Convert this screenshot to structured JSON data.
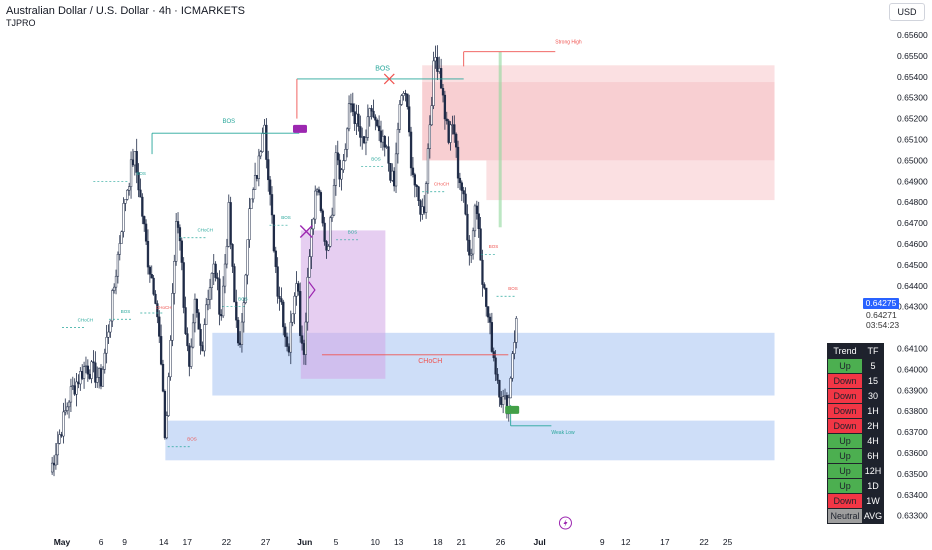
{
  "header": {
    "title": "Australian Dollar / U.S. Dollar · 4h · ICMARKETS",
    "indicator": "TJPRO",
    "currency_button": "USD"
  },
  "price_scale": {
    "current_price": "0.64275",
    "last_value": "0.64271",
    "countdown": "03:54:23"
  },
  "colors": {
    "up_candle": "#ffffff",
    "down_candle": "#1e2a46",
    "bos": "#26a69a",
    "choch": "#ef5350",
    "supply_zone": "#f7c7ca",
    "demand_zone": "#c5d8f7",
    "purple_zone": "#d1a6e6",
    "accent": "#2962ff"
  },
  "chart_data": {
    "type": "candlestick",
    "symbol": "AUDUSD",
    "timeframe": "4h",
    "ylim": [
      0.633,
      0.6565
    ],
    "yticks": [
      "0.65600",
      "0.65500",
      "0.65400",
      "0.65300",
      "0.65200",
      "0.65100",
      "0.65000",
      "0.64900",
      "0.64800",
      "0.64700",
      "0.64600",
      "0.64500",
      "0.64400",
      "0.64300",
      "0.64100",
      "0.64000",
      "0.63900",
      "0.63800",
      "0.63700",
      "0.63600",
      "0.63500",
      "0.63400",
      "0.63300"
    ],
    "xticks": [
      {
        "label": "May",
        "day": 0,
        "bold": true
      },
      {
        "label": "6",
        "day": 5
      },
      {
        "label": "9",
        "day": 8
      },
      {
        "label": "14",
        "day": 13
      },
      {
        "label": "17",
        "day": 16
      },
      {
        "label": "22",
        "day": 21
      },
      {
        "label": "27",
        "day": 26
      },
      {
        "label": "Jun",
        "day": 31,
        "bold": true
      },
      {
        "label": "5",
        "day": 35
      },
      {
        "label": "10",
        "day": 40
      },
      {
        "label": "13",
        "day": 43
      },
      {
        "label": "18",
        "day": 48
      },
      {
        "label": "21",
        "day": 51
      },
      {
        "label": "26",
        "day": 56
      },
      {
        "label": "Jul",
        "day": 61,
        "bold": true
      },
      {
        "label": "9",
        "day": 69
      },
      {
        "label": "12",
        "day": 72
      },
      {
        "label": "17",
        "day": 77
      },
      {
        "label": "22",
        "day": 82
      },
      {
        "label": "25",
        "day": 85
      }
    ],
    "swings": [
      {
        "day": -1.5,
        "price": 0.6351
      },
      {
        "day": 1,
        "price": 0.6388
      },
      {
        "day": 3,
        "price": 0.6402
      },
      {
        "day": 5,
        "price": 0.6395
      },
      {
        "day": 6.5,
        "price": 0.6435
      },
      {
        "day": 8,
        "price": 0.6481
      },
      {
        "day": 9.2,
        "price": 0.6503
      },
      {
        "day": 9.8,
        "price": 0.6488
      },
      {
        "day": 11,
        "price": 0.6452
      },
      {
        "day": 12,
        "price": 0.6435
      },
      {
        "day": 12.6,
        "price": 0.6405
      },
      {
        "day": 13.2,
        "price": 0.6365
      },
      {
        "day": 14,
        "price": 0.6425
      },
      {
        "day": 14.6,
        "price": 0.6473
      },
      {
        "day": 15,
        "price": 0.6468
      },
      {
        "day": 15.7,
        "price": 0.6423
      },
      {
        "day": 16.3,
        "price": 0.6396
      },
      {
        "day": 17,
        "price": 0.6431
      },
      {
        "day": 17.8,
        "price": 0.6408
      },
      {
        "day": 18.4,
        "price": 0.6432
      },
      {
        "day": 19.5,
        "price": 0.645
      },
      {
        "day": 20.3,
        "price": 0.6425
      },
      {
        "day": 21.3,
        "price": 0.6475
      },
      {
        "day": 22,
        "price": 0.6432
      },
      {
        "day": 22.8,
        "price": 0.6407
      },
      {
        "day": 23.8,
        "price": 0.6472
      },
      {
        "day": 25.2,
        "price": 0.65
      },
      {
        "day": 25.8,
        "price": 0.6525
      },
      {
        "day": 26.3,
        "price": 0.6492
      },
      {
        "day": 27,
        "price": 0.6463
      },
      {
        "day": 27.5,
        "price": 0.644
      },
      {
        "day": 28,
        "price": 0.6433
      },
      {
        "day": 28.5,
        "price": 0.6417
      },
      {
        "day": 29,
        "price": 0.641
      },
      {
        "day": 29.5,
        "price": 0.6432
      },
      {
        "day": 30,
        "price": 0.6448
      },
      {
        "day": 30.5,
        "price": 0.6415
      },
      {
        "day": 31,
        "price": 0.641
      },
      {
        "day": 31.5,
        "price": 0.6456
      },
      {
        "day": 32,
        "price": 0.6468
      },
      {
        "day": 32.5,
        "price": 0.649
      },
      {
        "day": 33,
        "price": 0.6475
      },
      {
        "day": 33.8,
        "price": 0.6458
      },
      {
        "day": 34.4,
        "price": 0.6472
      },
      {
        "day": 35,
        "price": 0.6508
      },
      {
        "day": 35.6,
        "price": 0.6492
      },
      {
        "day": 36.2,
        "price": 0.6507
      },
      {
        "day": 36.8,
        "price": 0.6528
      },
      {
        "day": 37.5,
        "price": 0.652
      },
      {
        "day": 38.5,
        "price": 0.6505
      },
      {
        "day": 39.5,
        "price": 0.6525
      },
      {
        "day": 40.5,
        "price": 0.651
      },
      {
        "day": 41.5,
        "price": 0.6503
      },
      {
        "day": 42.4,
        "price": 0.6486
      },
      {
        "day": 43,
        "price": 0.6522
      },
      {
        "day": 43.8,
        "price": 0.6535
      },
      {
        "day": 44.6,
        "price": 0.65
      },
      {
        "day": 45.4,
        "price": 0.648
      },
      {
        "day": 46.2,
        "price": 0.6475
      },
      {
        "day": 47,
        "price": 0.652
      },
      {
        "day": 47.6,
        "price": 0.655
      },
      {
        "day": 48.2,
        "price": 0.6545
      },
      {
        "day": 48.8,
        "price": 0.6525
      },
      {
        "day": 49.4,
        "price": 0.651
      },
      {
        "day": 50,
        "price": 0.6518
      },
      {
        "day": 50.5,
        "price": 0.6496
      },
      {
        "day": 51,
        "price": 0.6488
      },
      {
        "day": 51.6,
        "price": 0.6472
      },
      {
        "day": 52.2,
        "price": 0.6452
      },
      {
        "day": 52.7,
        "price": 0.648
      },
      {
        "day": 53.2,
        "price": 0.647
      },
      {
        "day": 53.8,
        "price": 0.644
      },
      {
        "day": 54.6,
        "price": 0.642
      },
      {
        "day": 55.4,
        "price": 0.64
      },
      {
        "day": 56.2,
        "price": 0.6385
      },
      {
        "day": 57,
        "price": 0.6383
      },
      {
        "day": 57.5,
        "price": 0.6408
      },
      {
        "day": 58.2,
        "price": 0.6427
      }
    ],
    "zones": [
      {
        "kind": "supply",
        "d1": 46.0,
        "d2": 91,
        "top": 0.65455,
        "bottom": 0.65375,
        "color": "#f7c7ca",
        "opacity": 0.55
      },
      {
        "kind": "supply",
        "d1": 46.0,
        "d2": 91,
        "top": 0.65375,
        "bottom": 0.65,
        "color": "#f7c7ca",
        "opacity": 0.85
      },
      {
        "kind": "supply",
        "d1": 54.2,
        "d2": 91,
        "top": 0.65,
        "bottom": 0.6481,
        "color": "#f7c7ca",
        "opacity": 0.55
      },
      {
        "kind": "demand",
        "d1": 19.2,
        "d2": 91,
        "top": 0.64175,
        "bottom": 0.63875,
        "color": "#c5d8f7",
        "opacity": 0.85
      },
      {
        "kind": "demand",
        "d1": 13.2,
        "d2": 91,
        "top": 0.63755,
        "bottom": 0.63565,
        "color": "#c5d8f7",
        "opacity": 0.85
      },
      {
        "kind": "purple",
        "d1": 30.5,
        "d2": 41.3,
        "top": 0.64665,
        "bottom": 0.63955,
        "color": "#d1a6e6",
        "opacity": 0.55
      }
    ],
    "lines": [
      {
        "d1": 11.5,
        "d2": 30.3,
        "p": 0.6513,
        "color": "#26a69a",
        "dash": false
      },
      {
        "d1": 30.0,
        "d2": 51.3,
        "p": 0.6539,
        "color": "#26a69a",
        "dash": false
      },
      {
        "d1": 51.3,
        "d2": 63.0,
        "p": 0.6552,
        "color": "#ef5350",
        "dash": false
      },
      {
        "d1": 33.2,
        "d2": 57.0,
        "p": 0.6407,
        "color": "#ef5350",
        "dash": false
      },
      {
        "d1": 57.3,
        "d2": 62.5,
        "p": 0.6373,
        "color": "#26a69a",
        "dash": false
      }
    ],
    "labels": [
      {
        "text": "BOS",
        "d": 20.5,
        "p": 0.6518,
        "color": "#26a69a",
        "size": 6
      },
      {
        "text": "BOS",
        "d": 40.0,
        "p": 0.6543,
        "color": "#26a69a",
        "size": 7
      },
      {
        "text": "Strong High",
        "d": 63.0,
        "p": 0.6556,
        "color": "#ef5350",
        "size": 5
      },
      {
        "text": "Weak Low",
        "d": 62.5,
        "p": 0.6369,
        "color": "#26a69a",
        "size": 5
      },
      {
        "text": "CHoCH",
        "d": 45.5,
        "p": 0.6403,
        "color": "#ef5350",
        "size": 7
      },
      {
        "text": "BOS",
        "d": 9.5,
        "p": 0.6493,
        "color": "#26a69a",
        "size": 4.5
      },
      {
        "text": "CHoCH",
        "d": 17.3,
        "p": 0.6466,
        "color": "#26a69a",
        "size": 4.5
      },
      {
        "text": "CHoCH",
        "d": 12.0,
        "p": 0.6429,
        "color": "#ef5350",
        "size": 4.5
      },
      {
        "text": "BOS",
        "d": 7.5,
        "p": 0.6427,
        "color": "#26a69a",
        "size": 4.5
      },
      {
        "text": "CHoCH",
        "d": 2.0,
        "p": 0.6423,
        "color": "#26a69a",
        "size": 4.5
      },
      {
        "text": "BOS",
        "d": 16.0,
        "p": 0.6366,
        "color": "#ef5350",
        "size": 4.5
      },
      {
        "text": "BOS",
        "d": 22.5,
        "p": 0.6433,
        "color": "#26a69a",
        "size": 4.5
      },
      {
        "text": "BOS",
        "d": 28.0,
        "p": 0.6472,
        "color": "#26a69a",
        "size": 4.5
      },
      {
        "text": "BOS",
        "d": 36.5,
        "p": 0.6465,
        "color": "#26a69a",
        "size": 4.5
      },
      {
        "text": "BOS",
        "d": 39.5,
        "p": 0.65,
        "color": "#26a69a",
        "size": 4.5
      },
      {
        "text": "CHoCH",
        "d": 47.5,
        "p": 0.6488,
        "color": "#ef5350",
        "size": 4.5
      },
      {
        "text": "BOS",
        "d": 54.5,
        "p": 0.6458,
        "color": "#ef5350",
        "size": 4.5
      },
      {
        "text": "BOS",
        "d": 57.0,
        "p": 0.6438,
        "color": "#ef5350",
        "size": 4.5
      }
    ]
  },
  "trend_table": {
    "headers": [
      "Trend",
      "TF"
    ],
    "rows": [
      {
        "trend": "Up",
        "tf": "5",
        "color": "#4caf50"
      },
      {
        "trend": "Down",
        "tf": "15",
        "color": "#f23645"
      },
      {
        "trend": "Down",
        "tf": "30",
        "color": "#f23645"
      },
      {
        "trend": "Down",
        "tf": "1H",
        "color": "#f23645"
      },
      {
        "trend": "Down",
        "tf": "2H",
        "color": "#f23645"
      },
      {
        "trend": "Up",
        "tf": "4H",
        "color": "#4caf50"
      },
      {
        "trend": "Up",
        "tf": "6H",
        "color": "#4caf50"
      },
      {
        "trend": "Up",
        "tf": "12H",
        "color": "#4caf50"
      },
      {
        "trend": "Up",
        "tf": "1D",
        "color": "#4caf50"
      },
      {
        "trend": "Down",
        "tf": "1W",
        "color": "#f23645"
      },
      {
        "trend": "Neutral",
        "tf": "AVG",
        "color": "#9e9e9e"
      }
    ]
  }
}
